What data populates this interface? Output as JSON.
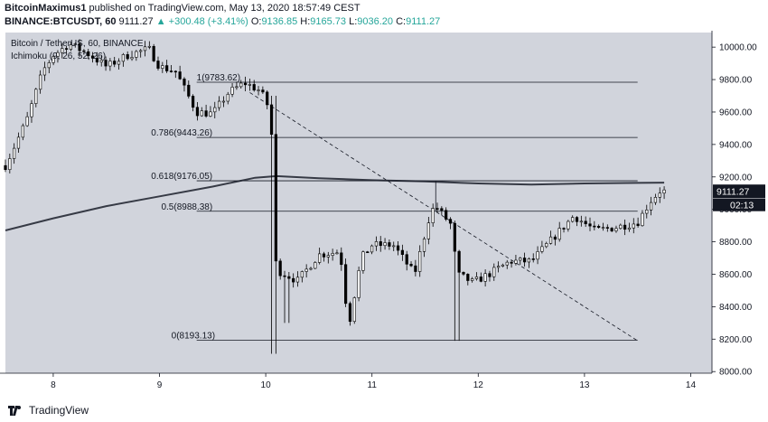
{
  "header": {
    "author": "BitcoinMaximus1",
    "published_text": "published on TradingView.com, May 13, 2020 18:57:49 CEST",
    "symbol": "BINANCE:BTCUSDT, 60",
    "last_price": "9111.27",
    "change": "▲ +300.48 (+3.41%)",
    "open_label": "O:",
    "open": "9136.85",
    "high_label": "H:",
    "high": "9165.73",
    "low_label": "L:",
    "low": "9036.20",
    "close_label": "C:",
    "close": "9111.27"
  },
  "legend": {
    "line1": "Bitcoin / TetherUS, 60, BINANCE",
    "line2": "Ichimoku (9, 26, 52, 26)"
  },
  "footer": {
    "brand": "TradingView"
  },
  "colors": {
    "up": "#26a69a",
    "chart_bg": "#d1d4dc",
    "candle": "#000000",
    "ma_line": "#363a45",
    "price_tag_bg": "#131722"
  },
  "price_tag": {
    "value": "9111.27",
    "countdown": "02:13"
  },
  "chart_data": {
    "type": "candlestick",
    "xlabel": "",
    "ylabel": "",
    "x_ticks": [
      "8",
      "9",
      "10",
      "11",
      "12",
      "13",
      "14"
    ],
    "x_tick_values": [
      8,
      9,
      10,
      11,
      12,
      13,
      14
    ],
    "y_ticks": [
      "8000.00",
      "8200.00",
      "8400.00",
      "8600.00",
      "8800.00",
      "9000.00",
      "9200.00",
      "9400.00",
      "9600.00",
      "9800.00",
      "10000.00"
    ],
    "ylim": [
      7990,
      10090
    ],
    "xlim": [
      7.55,
      14.2
    ],
    "grid": false,
    "fib_levels": [
      {
        "label": "1(9783.62)",
        "value": 9783.62
      },
      {
        "label": "0.786(9443.26)",
        "value": 9443.26
      },
      {
        "label": "0.618(9176.05)",
        "value": 9176.05
      },
      {
        "label": "0.5(8988.38)",
        "value": 8988.38
      },
      {
        "label": "0(8193.13)",
        "value": 8193.13
      }
    ],
    "fib_x_range": [
      9.35,
      13.5
    ],
    "trendline": {
      "x": [
        9.85,
        13.5
      ],
      "y": [
        9720,
        8190
      ]
    },
    "vertical_line": {
      "x": 11.6,
      "y": [
        8988.38,
        9176.05
      ]
    },
    "moving_average": {
      "x": [
        7.55,
        8.0,
        8.5,
        9.0,
        9.5,
        9.9,
        10.1,
        10.5,
        11.0,
        11.5,
        12.0,
        12.5,
        13.0,
        13.5,
        13.75
      ],
      "y": [
        8870,
        8945,
        9020,
        9080,
        9140,
        9195,
        9205,
        9192,
        9180,
        9172,
        9160,
        9153,
        9160,
        9163,
        9165
      ]
    },
    "anchors": {
      "x": [
        7.55,
        7.75,
        7.9,
        8.0,
        8.15,
        8.35,
        8.5,
        8.7,
        8.9,
        9.0,
        9.15,
        9.35,
        9.5,
        9.65,
        9.8,
        9.95,
        10.05,
        10.08,
        10.12,
        10.3,
        10.5,
        10.7,
        10.78,
        10.9,
        11.0,
        11.2,
        11.4,
        11.55,
        11.6,
        11.75,
        11.8,
        11.95,
        12.1,
        12.3,
        12.5,
        12.7,
        12.9,
        13.1,
        13.3,
        13.5,
        13.62,
        13.72,
        13.75
      ],
      "y": [
        9270,
        9550,
        9850,
        9950,
        10020,
        9950,
        9880,
        9950,
        9990,
        9880,
        9850,
        9600,
        9590,
        9720,
        9780,
        9730,
        9600,
        8700,
        8620,
        8560,
        8720,
        8740,
        8280,
        8700,
        8780,
        8780,
        8600,
        8980,
        9020,
        8900,
        8600,
        8550,
        8600,
        8680,
        8680,
        8820,
        8960,
        8870,
        8890,
        8920,
        9050,
        9120,
        9111
      ]
    }
  }
}
